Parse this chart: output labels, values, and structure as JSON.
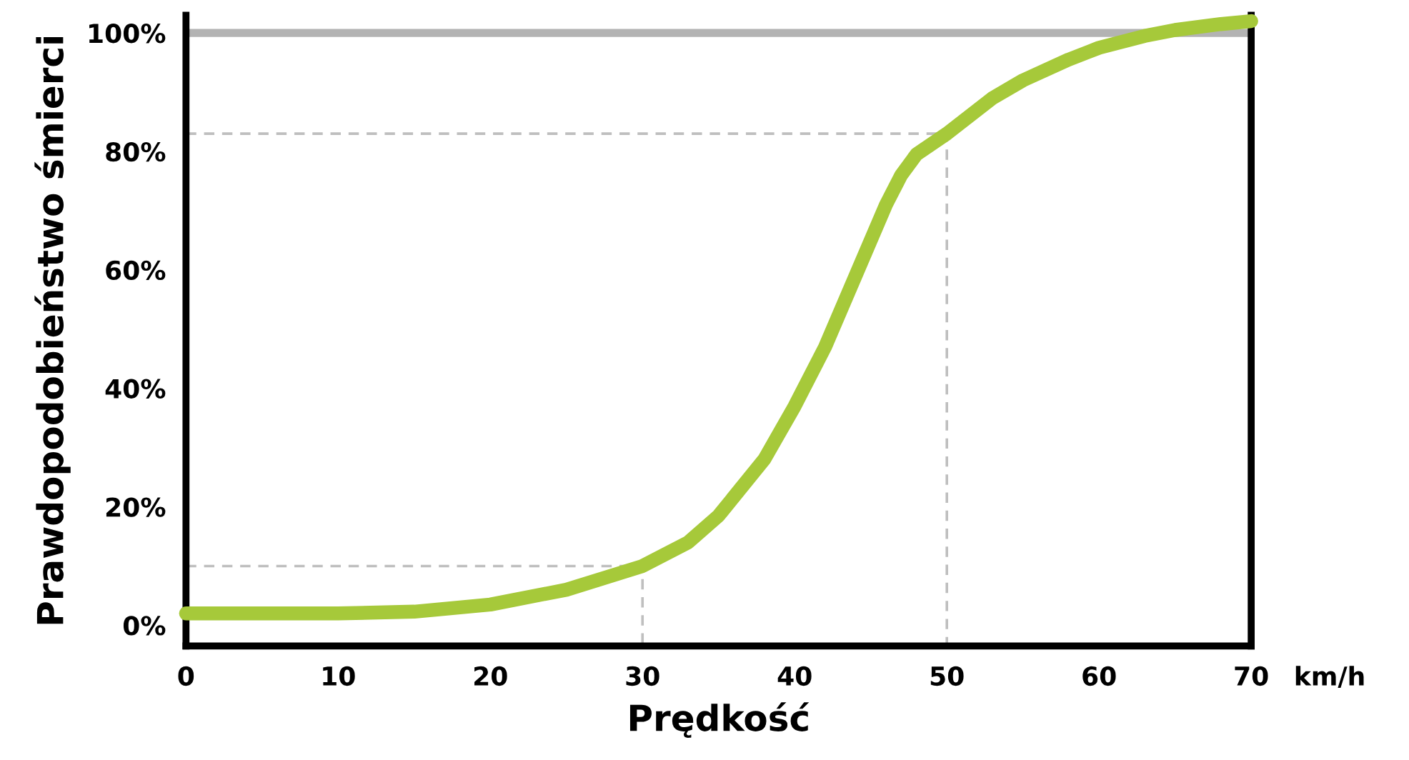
{
  "chart_data": {
    "type": "line",
    "xlabel": "Prędkość",
    "ylabel": "Prawdopodobieństwo śmierci",
    "annotations": [
      "km/h"
    ],
    "xlim": [
      0,
      70
    ],
    "xticks": [
      0,
      10,
      20,
      30,
      40,
      50,
      60,
      70
    ],
    "ylim": [
      -3.5,
      103
    ],
    "yticks": [
      {
        "value": 0,
        "label": "0%"
      },
      {
        "value": 20,
        "label": "20%"
      },
      {
        "value": 40,
        "label": "40%"
      },
      {
        "value": 60,
        "label": "60%"
      },
      {
        "value": 80,
        "label": "80%"
      },
      {
        "value": 100,
        "label": "100%"
      }
    ],
    "grid": false,
    "legend": false,
    "marker": "none",
    "ref_lines": [
      {
        "axis": "y",
        "value": 100,
        "label": null,
        "color": "#b3b3b3"
      }
    ],
    "series": [
      {
        "color": "#bfbfbf",
        "line_style": "dashed",
        "x": [
          0,
          30,
          30
        ],
        "values": [
          10,
          10,
          -3.5
        ]
      },
      {
        "color": "#bfbfbf",
        "line_style": "dashed",
        "x": [
          0,
          50,
          50
        ],
        "values": [
          83,
          83,
          -3.5
        ]
      },
      {
        "color": "#a6c93a",
        "line_style": "solid",
        "x": [
          0,
          5,
          10,
          15,
          20,
          25,
          30,
          33,
          35,
          38,
          40,
          42,
          43,
          44,
          45,
          46,
          47,
          48,
          50,
          53,
          55,
          58,
          60,
          63,
          65,
          68,
          70
        ],
        "values": [
          2,
          2,
          2,
          2.3,
          3.5,
          6,
          10,
          14,
          18.5,
          28,
          37,
          47,
          53,
          59,
          65,
          71,
          76,
          79.5,
          83,
          89,
          92,
          95.5,
          97.5,
          99.5,
          100.5,
          101.5,
          102
        ]
      }
    ]
  }
}
